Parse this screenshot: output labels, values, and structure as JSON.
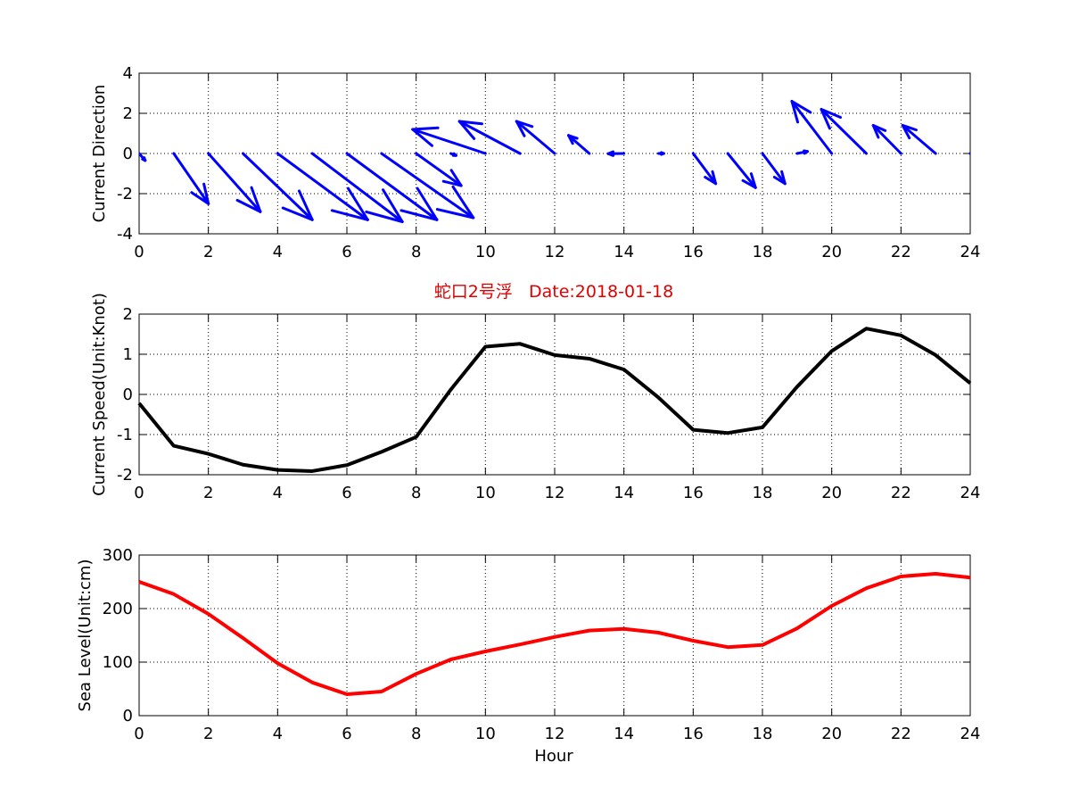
{
  "figure": {
    "title": "蛇口2号浮   Date:2018-01-18",
    "title_color": "#e00000"
  },
  "chart_data": [
    {
      "type": "quiver",
      "ylabel": "Current Direction",
      "xlim": [
        0,
        24
      ],
      "ylim": [
        -4,
        4
      ],
      "xticks": [
        0,
        2,
        4,
        6,
        8,
        10,
        12,
        14,
        16,
        18,
        20,
        22,
        24
      ],
      "yticks": [
        -4,
        -2,
        0,
        2,
        4
      ],
      "grid": true,
      "color": "#0000ff",
      "x": [
        0,
        1,
        2,
        3,
        4,
        5,
        6,
        7,
        8,
        9,
        10,
        11,
        12,
        13,
        14,
        15,
        16,
        17,
        18,
        19,
        20,
        21,
        22,
        23,
        24
      ],
      "u": [
        0.35,
        2.0,
        3.0,
        4.0,
        5.2,
        5.2,
        5.2,
        5.3,
        2.6,
        0.3,
        -4.2,
        -3.5,
        -2.2,
        -1.2,
        -0.9,
        0.3,
        1.3,
        1.6,
        1.3,
        0.6,
        -2.3,
        -2.6,
        -1.6,
        -1.9,
        0.4
      ],
      "v": [
        -0.35,
        -2.5,
        -2.9,
        -3.3,
        -3.3,
        -3.4,
        -3.3,
        -3.2,
        -1.6,
        -0.1,
        1.2,
        1.6,
        1.6,
        0.9,
        -0.01,
        0.0,
        -1.5,
        -1.7,
        -1.5,
        0.1,
        2.6,
        2.2,
        1.4,
        1.4,
        0.3
      ]
    },
    {
      "type": "line",
      "ylabel": "Current Speed(Unit:Knot)",
      "xlim": [
        0,
        24
      ],
      "ylim": [
        -2,
        2
      ],
      "xticks": [
        0,
        2,
        4,
        6,
        8,
        10,
        12,
        14,
        16,
        18,
        20,
        22,
        24
      ],
      "yticks": [
        -2,
        -1,
        0,
        1,
        2
      ],
      "grid": true,
      "color": "#000000",
      "x": [
        0,
        1,
        2,
        3,
        4,
        5,
        6,
        7,
        8,
        9,
        10,
        11,
        12,
        13,
        14,
        15,
        16,
        17,
        18,
        19,
        20,
        21,
        22,
        23,
        24
      ],
      "y": [
        -0.22,
        -1.28,
        -1.48,
        -1.75,
        -1.88,
        -1.91,
        -1.76,
        -1.43,
        -1.06,
        0.12,
        1.19,
        1.26,
        0.98,
        0.89,
        0.62,
        -0.08,
        -0.88,
        -0.96,
        -0.82,
        0.19,
        1.08,
        1.64,
        1.47,
        0.98,
        0.28
      ]
    },
    {
      "type": "line",
      "ylabel": "Sea Level(Unit:cm)",
      "xlabel": "Hour",
      "xlim": [
        0,
        24
      ],
      "ylim": [
        0,
        300
      ],
      "xticks": [
        0,
        2,
        4,
        6,
        8,
        10,
        12,
        14,
        16,
        18,
        20,
        22,
        24
      ],
      "yticks": [
        0,
        100,
        200,
        300
      ],
      "grid": true,
      "color": "#ff0000",
      "x": [
        0,
        1,
        2,
        3,
        4,
        5,
        6,
        7,
        8,
        9,
        10,
        11,
        12,
        13,
        14,
        15,
        16,
        17,
        18,
        19,
        20,
        21,
        22,
        23,
        24
      ],
      "y": [
        250,
        227,
        190,
        145,
        98,
        62,
        40,
        45,
        78,
        105,
        120,
        133,
        147,
        159,
        162,
        155,
        140,
        128,
        132,
        163,
        205,
        238,
        260,
        265,
        258
      ]
    }
  ]
}
